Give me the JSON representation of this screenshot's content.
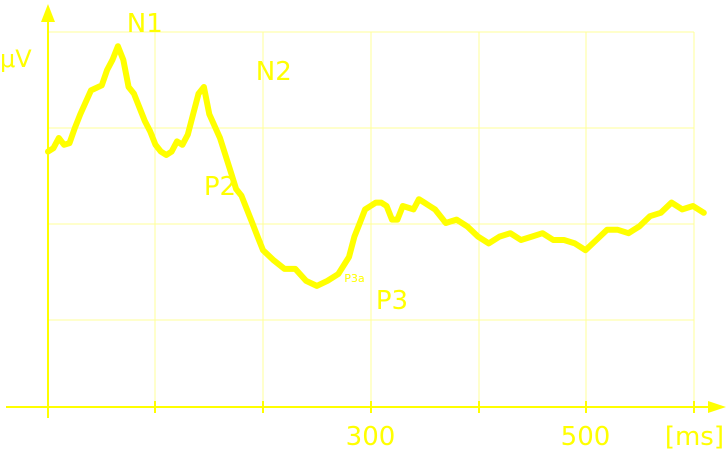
{
  "chart_data": {
    "type": "line",
    "color": "#ffff00",
    "grid_color": "#ffff99",
    "grid": true,
    "ylabel": "μV",
    "xunit": "[ms]",
    "xticks": [
      {
        "value": 300,
        "label": "300"
      },
      {
        "value": 500,
        "label": "500"
      }
    ],
    "x": [
      0,
      5,
      10,
      15,
      20,
      25,
      30,
      40,
      50,
      55,
      60,
      65,
      70,
      75,
      80,
      85,
      90,
      95,
      100,
      105,
      110,
      115,
      120,
      125,
      130,
      135,
      140,
      145,
      150,
      160,
      165,
      170,
      175,
      180,
      185,
      190,
      195,
      200,
      210,
      220,
      230,
      240,
      250,
      260,
      270,
      280,
      285,
      290,
      295,
      300,
      305,
      310,
      315,
      320,
      325,
      330,
      340,
      345,
      350,
      355,
      360,
      370,
      380,
      390,
      400,
      410,
      420,
      430,
      440,
      450,
      460,
      470,
      480,
      490,
      500,
      510,
      520,
      530,
      540,
      550,
      560,
      570,
      580,
      590,
      600,
      610
    ],
    "y": [
      2.1,
      2.2,
      2.5,
      2.3,
      2.35,
      2.8,
      3.2,
      3.9,
      4.05,
      4.5,
      4.8,
      5.2,
      4.8,
      4.0,
      3.8,
      3.4,
      3.0,
      2.7,
      2.3,
      2.1,
      2.0,
      2.1,
      2.4,
      2.3,
      2.6,
      3.2,
      3.8,
      4.0,
      3.2,
      2.5,
      2.0,
      1.5,
      1.0,
      0.8,
      0.4,
      0.0,
      -0.4,
      -0.8,
      -1.1,
      -1.35,
      -1.35,
      -1.7,
      -1.85,
      -1.7,
      -1.5,
      -1.0,
      -0.4,
      0.0,
      0.4,
      0.5,
      0.6,
      0.6,
      0.5,
      0.1,
      0.1,
      0.5,
      0.4,
      0.7,
      0.6,
      0.5,
      0.4,
      0.0,
      0.1,
      -0.1,
      -0.4,
      -0.6,
      -0.4,
      -0.3,
      -0.5,
      -0.4,
      -0.3,
      -0.5,
      -0.5,
      -0.6,
      -0.8,
      -0.5,
      -0.2,
      -0.2,
      -0.3,
      -0.1,
      0.2,
      0.3,
      0.6,
      0.4,
      0.5,
      0.3
    ],
    "annotations": [
      {
        "text": "N1",
        "x": 90,
        "y": 5.2,
        "pos": "above"
      },
      {
        "text": "P2",
        "x": 160,
        "y": 2.0,
        "pos": "below"
      },
      {
        "text": "N2",
        "x": 210,
        "y": 3.8,
        "pos": "above"
      },
      {
        "text": "P3a",
        "x": 285,
        "y": -0.8,
        "pos": "below-small"
      },
      {
        "text": "P3",
        "x": 320,
        "y": -1.35,
        "pos": "below"
      }
    ]
  }
}
